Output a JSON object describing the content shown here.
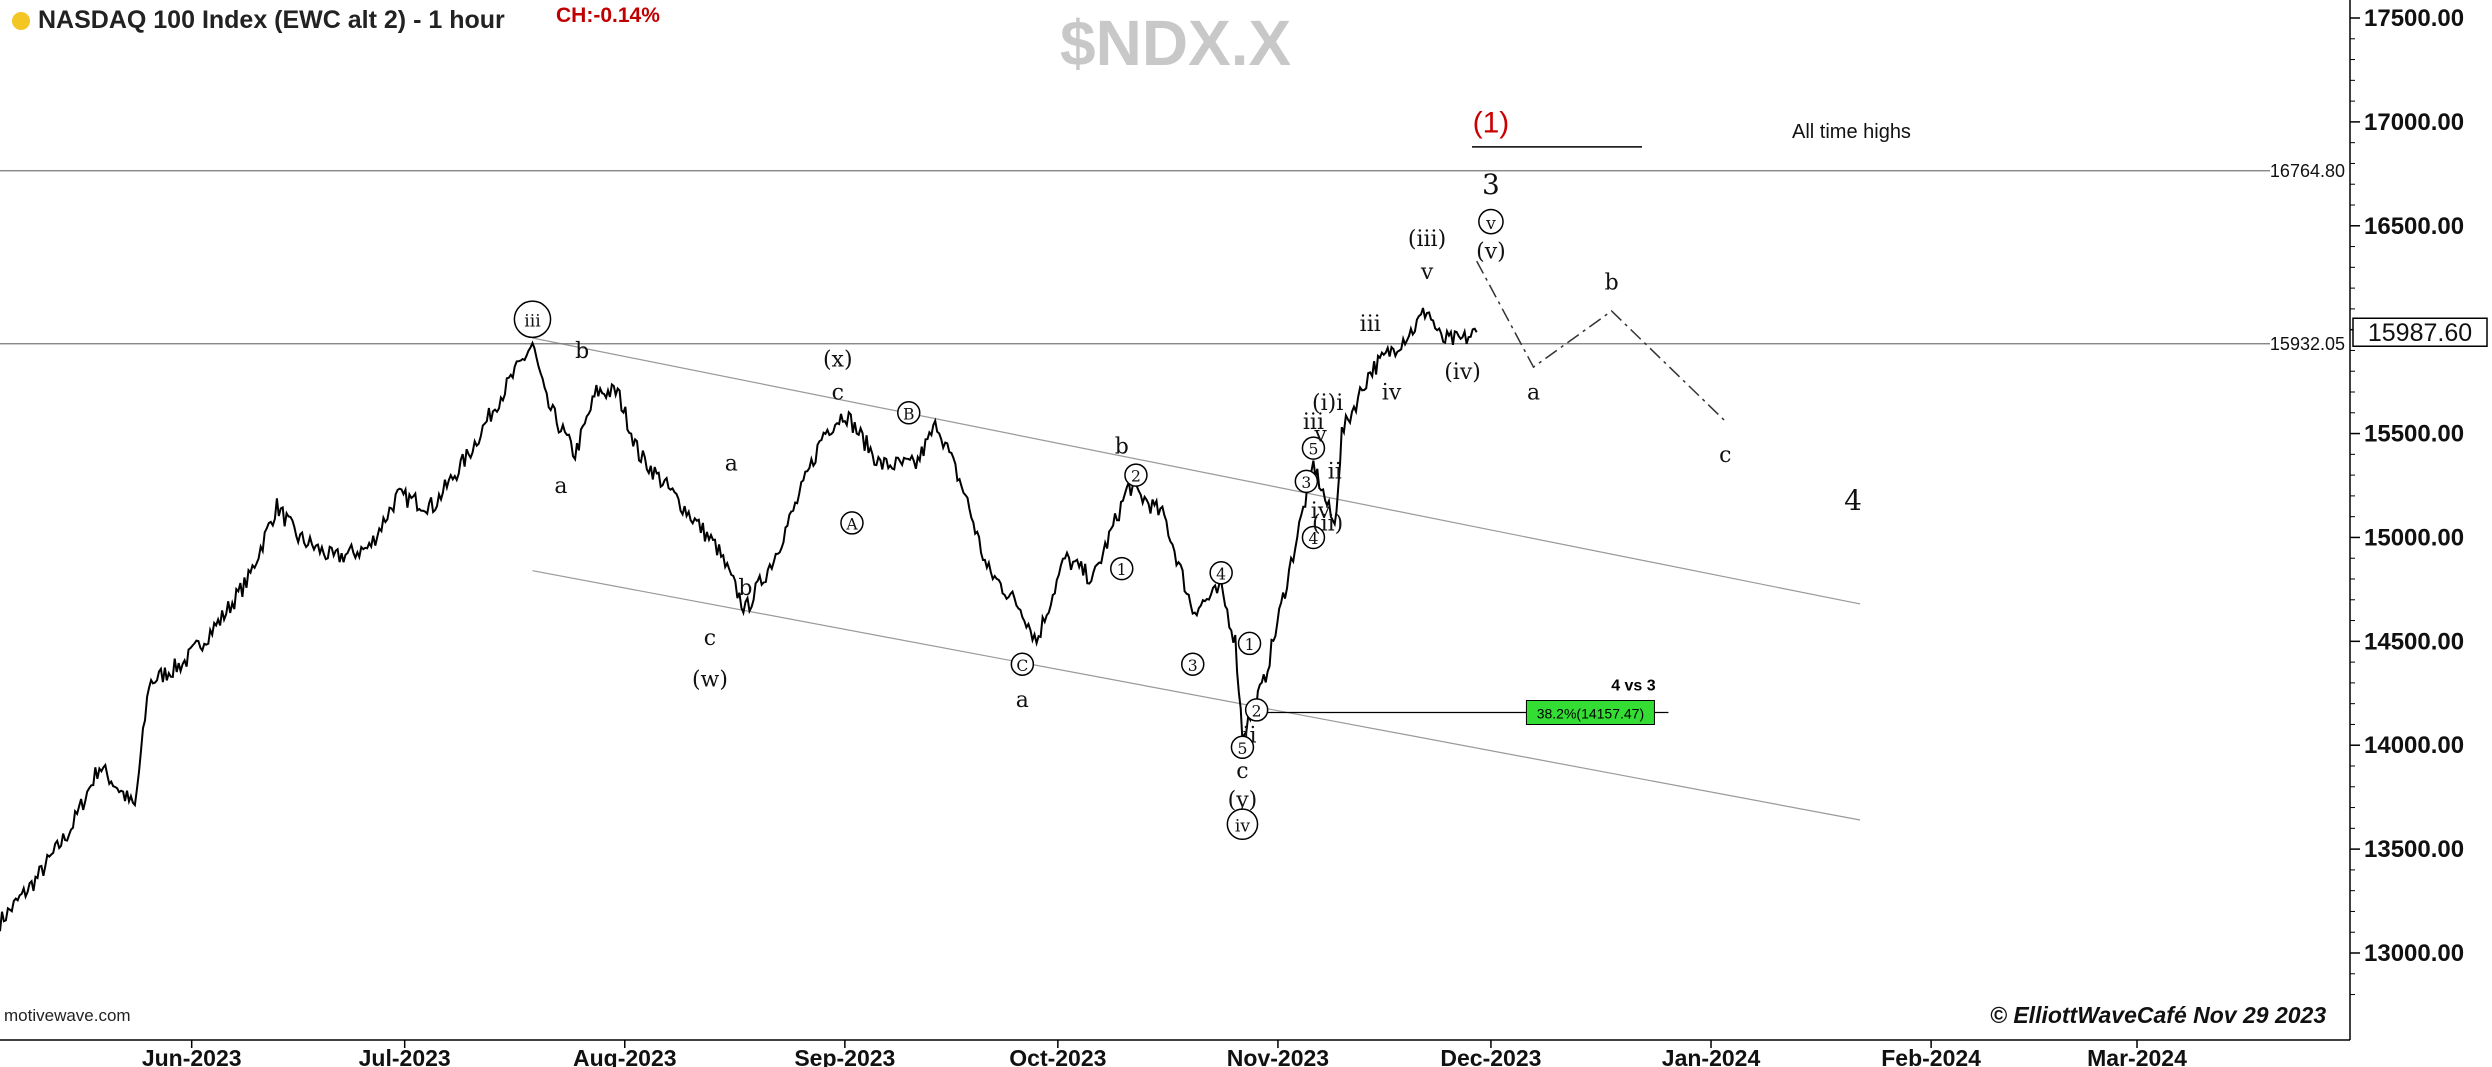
{
  "header": {
    "title": "NASDAQ 100 Index (EWC alt 2) - 1 hour",
    "change": "CH:-0.14%",
    "symbol": "$NDX.X",
    "source": "motivewave.com",
    "credit": "© ElliottWaveCafé Nov 29 2023"
  },
  "colors": {
    "price": "#000000",
    "fib_box": "#33dd33",
    "wave1_label": "#cc0000",
    "grid_text": "#111111"
  },
  "chart_data": {
    "type": "line",
    "title": "NASDAQ 100 Index (EWC alt 2) - 1 hour",
    "ylim": [
      12700,
      17600
    ],
    "y_ticks": [
      13000,
      13500,
      14000,
      14500,
      15000,
      15500,
      16000,
      16500,
      17000,
      17500
    ],
    "y_tick_labels": [
      "13000.00",
      "13500.00",
      "14000.00",
      "14500.00",
      "15000.00",
      "15500.00",
      "16000.00",
      "16500.00",
      "17000.00",
      "17500.00"
    ],
    "x_tick_labels": [
      "Jun-2023",
      "Jul-2023",
      "Aug-2023",
      "Sep-2023",
      "Oct-2023",
      "Nov-2023",
      "Dec-2023",
      "Jan-2024",
      "Feb-2024",
      "Mar-2024"
    ],
    "x_tick_dates": [
      "2023-06-01",
      "2023-07-01",
      "2023-08-01",
      "2023-09-01",
      "2023-10-01",
      "2023-11-01",
      "2023-12-01",
      "2024-01-01",
      "2024-02-01",
      "2024-03-01"
    ],
    "xlim": [
      "2023-05-05",
      "2024-03-31"
    ],
    "price_series": {
      "name": "",
      "x": [
        "2023-05-05",
        "2023-05-10",
        "2023-05-15",
        "2023-05-19",
        "2023-05-24",
        "2023-05-26",
        "2023-05-31",
        "2023-06-05",
        "2023-06-09",
        "2023-06-13",
        "2023-06-16",
        "2023-06-21",
        "2023-06-26",
        "2023-06-30",
        "2023-07-05",
        "2023-07-10",
        "2023-07-14",
        "2023-07-19",
        "2023-07-21",
        "2023-07-25",
        "2023-07-28",
        "2023-07-31",
        "2023-08-03",
        "2023-08-08",
        "2023-08-14",
        "2023-08-18",
        "2023-08-22",
        "2023-08-25",
        "2023-08-29",
        "2023-09-01",
        "2023-09-06",
        "2023-09-11",
        "2023-09-14",
        "2023-09-18",
        "2023-09-21",
        "2023-09-26",
        "2023-09-28",
        "2023-10-02",
        "2023-10-06",
        "2023-10-11",
        "2023-10-16",
        "2023-10-20",
        "2023-10-24",
        "2023-10-26",
        "2023-10-27",
        "2023-10-30",
        "2023-11-02",
        "2023-11-06",
        "2023-11-09",
        "2023-11-10",
        "2023-11-14",
        "2023-11-17",
        "2023-11-20",
        "2023-11-22",
        "2023-11-24",
        "2023-11-27",
        "2023-11-29"
      ],
      "values": [
        13150,
        13350,
        13600,
        13900,
        13700,
        14300,
        14400,
        14600,
        14800,
        15150,
        15000,
        14900,
        14950,
        15200,
        15150,
        15400,
        15650,
        15930,
        15650,
        15400,
        15700,
        15700,
        15400,
        15200,
        14950,
        14650,
        14900,
        15150,
        15500,
        15600,
        15350,
        15350,
        15550,
        15200,
        14850,
        14650,
        14500,
        14900,
        14800,
        15250,
        15100,
        14650,
        14750,
        14500,
        14050,
        14300,
        14750,
        15350,
        15050,
        15500,
        15800,
        15900,
        16000,
        16100,
        15950,
        15950,
        15987.6
      ]
    },
    "horizontal_levels": [
      {
        "value": 16764.8,
        "label": "16764.80",
        "note": "All time highs"
      },
      {
        "value": 15932.05,
        "label": "15932.05"
      }
    ],
    "last_price": {
      "value": 15987.6,
      "label": "15987.60"
    },
    "fib_target": {
      "label": "38.2%(14157.47)",
      "value": 14157.47,
      "note": "4 vs 3"
    },
    "projection": {
      "x": [
        "2023-11-29",
        "2023-12-07",
        "2023-12-18",
        "2024-01-03"
      ],
      "y": [
        16330,
        15820,
        16090,
        15560
      ],
      "labels": [
        "a",
        "b",
        "c"
      ]
    },
    "wave_labels": [
      {
        "text": "(1)",
        "x": "2023-12-01",
        "y": 17000,
        "color": "#cc0000",
        "size": 30,
        "circle": false
      },
      {
        "text": "3",
        "x": "2023-12-01",
        "y": 16700,
        "size": 28,
        "circle": false
      },
      {
        "text": "v",
        "x": "2023-12-01",
        "y": 16520,
        "size": 22,
        "circle": true
      },
      {
        "text": "(v)",
        "x": "2023-12-01",
        "y": 16380,
        "size": 22,
        "circle": false
      },
      {
        "text": "(iii)",
        "x": "2023-11-22",
        "y": 16440,
        "size": 22,
        "circle": false
      },
      {
        "text": "v",
        "x": "2023-11-22",
        "y": 16280,
        "size": 22,
        "circle": false
      },
      {
        "text": "iii",
        "x": "2023-11-14",
        "y": 16030,
        "size": 22,
        "circle": false
      },
      {
        "text": "iv",
        "x": "2023-11-17",
        "y": 15700,
        "size": 22,
        "circle": false
      },
      {
        "text": "(iv)",
        "x": "2023-11-27",
        "y": 15800,
        "size": 22,
        "circle": false
      },
      {
        "text": "a",
        "x": "2023-12-07",
        "y": 15700,
        "size": 22,
        "circle": false
      },
      {
        "text": "b",
        "x": "2023-12-18",
        "y": 16230,
        "size": 22,
        "circle": false
      },
      {
        "text": "c",
        "x": "2024-01-03",
        "y": 15400,
        "size": 22,
        "circle": false
      },
      {
        "text": "4",
        "x": "2024-01-21",
        "y": 15180,
        "size": 28,
        "circle": false
      },
      {
        "text": "iii",
        "x": "2023-07-19",
        "y": 16050,
        "size": 22,
        "circle": true
      },
      {
        "text": "b",
        "x": "2023-07-26",
        "y": 15900,
        "size": 22,
        "circle": false
      },
      {
        "text": "a",
        "x": "2023-07-23",
        "y": 15250,
        "size": 22,
        "circle": false
      },
      {
        "text": "a",
        "x": "2023-08-16",
        "y": 15360,
        "size": 22,
        "circle": false
      },
      {
        "text": "c",
        "x": "2023-08-13",
        "y": 14520,
        "size": 22,
        "circle": false
      },
      {
        "text": "(w)",
        "x": "2023-08-13",
        "y": 14320,
        "size": 22,
        "circle": false
      },
      {
        "text": "b",
        "x": "2023-08-18",
        "y": 14760,
        "size": 22,
        "circle": false
      },
      {
        "text": "(x)",
        "x": "2023-08-31",
        "y": 15860,
        "size": 22,
        "circle": false
      },
      {
        "text": "c",
        "x": "2023-08-31",
        "y": 15700,
        "size": 22,
        "circle": false
      },
      {
        "text": "A",
        "x": "2023-09-02",
        "y": 15070,
        "size": 20,
        "circle": true
      },
      {
        "text": "B",
        "x": "2023-09-10",
        "y": 15600,
        "size": 20,
        "circle": true
      },
      {
        "text": "C",
        "x": "2023-09-26",
        "y": 14390,
        "size": 20,
        "circle": true
      },
      {
        "text": "a",
        "x": "2023-09-26",
        "y": 14220,
        "size": 22,
        "circle": false
      },
      {
        "text": "b",
        "x": "2023-10-10",
        "y": 15440,
        "size": 22,
        "circle": false
      },
      {
        "text": "1",
        "x": "2023-10-10",
        "y": 14850,
        "size": 20,
        "circle": true
      },
      {
        "text": "2",
        "x": "2023-10-12",
        "y": 15300,
        "size": 20,
        "circle": true
      },
      {
        "text": "3",
        "x": "2023-10-20",
        "y": 14390,
        "size": 20,
        "circle": true
      },
      {
        "text": "4",
        "x": "2023-10-24",
        "y": 14830,
        "size": 20,
        "circle": true
      },
      {
        "text": "1",
        "x": "2023-10-28",
        "y": 14490,
        "size": 20,
        "circle": true
      },
      {
        "text": "2",
        "x": "2023-10-29",
        "y": 14170,
        "size": 20,
        "circle": true
      },
      {
        "text": "ii",
        "x": "2023-10-28",
        "y": 14050,
        "size": 22,
        "circle": false
      },
      {
        "text": "5",
        "x": "2023-10-27",
        "y": 13990,
        "size": 20,
        "circle": true
      },
      {
        "text": "c",
        "x": "2023-10-27",
        "y": 13880,
        "size": 22,
        "circle": false
      },
      {
        "text": "(y)",
        "x": "2023-10-27",
        "y": 13740,
        "size": 22,
        "circle": false
      },
      {
        "text": "iv",
        "x": "2023-10-27",
        "y": 13620,
        "size": 22,
        "circle": true
      },
      {
        "text": "3",
        "x": "2023-11-05",
        "y": 15270,
        "size": 20,
        "circle": true
      },
      {
        "text": "4",
        "x": "2023-11-06",
        "y": 15000,
        "size": 20,
        "circle": true
      },
      {
        "text": "5",
        "x": "2023-11-06",
        "y": 15430,
        "size": 20,
        "circle": true
      },
      {
        "text": "iii",
        "x": "2023-11-06",
        "y": 15560,
        "size": 22,
        "circle": false
      },
      {
        "text": "v",
        "x": "2023-11-07",
        "y": 15500,
        "size": 22,
        "circle": false
      },
      {
        "text": "(i)i",
        "x": "2023-11-08",
        "y": 15650,
        "size": 22,
        "circle": false
      },
      {
        "text": "iv",
        "x": "2023-11-07",
        "y": 15130,
        "size": 22,
        "circle": false
      },
      {
        "text": "(ii)",
        "x": "2023-11-08",
        "y": 15070,
        "size": 22,
        "circle": false
      },
      {
        "text": "ii",
        "x": "2023-11-09",
        "y": 15320,
        "size": 22,
        "circle": false
      }
    ]
  }
}
